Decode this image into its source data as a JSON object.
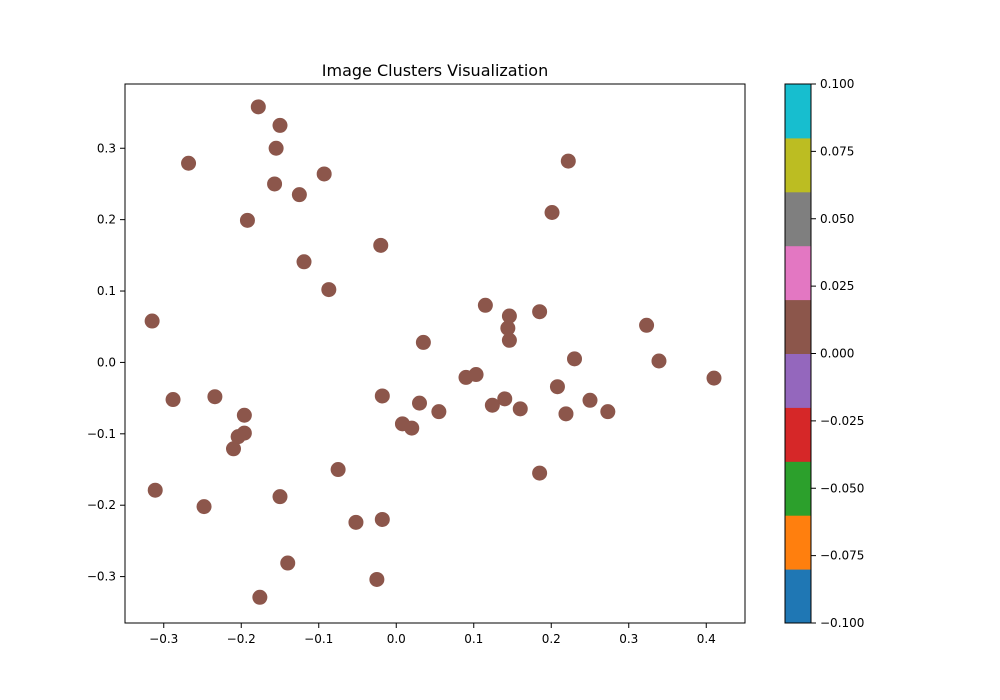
{
  "chart_data": {
    "type": "scatter",
    "title": "Image Clusters Visualization",
    "xlabel": "",
    "ylabel": "",
    "xlim": [
      -0.35,
      0.45
    ],
    "ylim": [
      -0.365,
      0.39
    ],
    "x_ticks": [
      -0.3,
      -0.2,
      -0.1,
      0.0,
      0.1,
      0.2,
      0.3,
      0.4
    ],
    "x_tick_labels": [
      "−0.3",
      "−0.2",
      "−0.1",
      "0.0",
      "0.1",
      "0.2",
      "0.3",
      "0.4"
    ],
    "y_ticks": [
      -0.3,
      -0.2,
      -0.1,
      0.0,
      0.1,
      0.2,
      0.3
    ],
    "y_tick_labels": [
      "−0.3",
      "−0.2",
      "−0.1",
      "0.0",
      "0.1",
      "0.2",
      "0.3"
    ],
    "grid": false,
    "point_color": "#8c564b",
    "points": [
      {
        "x": -0.178,
        "y": 0.358
      },
      {
        "x": -0.15,
        "y": 0.332
      },
      {
        "x": -0.155,
        "y": 0.3
      },
      {
        "x": -0.268,
        "y": 0.279
      },
      {
        "x": -0.093,
        "y": 0.264
      },
      {
        "x": -0.157,
        "y": 0.25
      },
      {
        "x": -0.125,
        "y": 0.235
      },
      {
        "x": -0.192,
        "y": 0.199
      },
      {
        "x": -0.02,
        "y": 0.164
      },
      {
        "x": -0.119,
        "y": 0.141
      },
      {
        "x": -0.087,
        "y": 0.102
      },
      {
        "x": -0.315,
        "y": 0.058
      },
      {
        "x": 0.222,
        "y": 0.282
      },
      {
        "x": 0.201,
        "y": 0.21
      },
      {
        "x": 0.115,
        "y": 0.08
      },
      {
        "x": 0.146,
        "y": 0.065
      },
      {
        "x": 0.185,
        "y": 0.071
      },
      {
        "x": 0.144,
        "y": 0.048
      },
      {
        "x": 0.146,
        "y": 0.031
      },
      {
        "x": 0.035,
        "y": 0.028
      },
      {
        "x": 0.323,
        "y": 0.052
      },
      {
        "x": 0.339,
        "y": 0.002
      },
      {
        "x": 0.23,
        "y": 0.005
      },
      {
        "x": 0.41,
        "y": -0.022
      },
      {
        "x": 0.208,
        "y": -0.034
      },
      {
        "x": 0.09,
        "y": -0.021
      },
      {
        "x": 0.103,
        "y": -0.017
      },
      {
        "x": 0.25,
        "y": -0.053
      },
      {
        "x": 0.273,
        "y": -0.069
      },
      {
        "x": 0.219,
        "y": -0.072
      },
      {
        "x": 0.14,
        "y": -0.051
      },
      {
        "x": 0.124,
        "y": -0.06
      },
      {
        "x": 0.16,
        "y": -0.065
      },
      {
        "x": 0.055,
        "y": -0.069
      },
      {
        "x": 0.03,
        "y": -0.057
      },
      {
        "x": -0.018,
        "y": -0.047
      },
      {
        "x": 0.008,
        "y": -0.086
      },
      {
        "x": 0.02,
        "y": -0.092
      },
      {
        "x": 0.185,
        "y": -0.155
      },
      {
        "x": -0.288,
        "y": -0.052
      },
      {
        "x": -0.234,
        "y": -0.048
      },
      {
        "x": -0.196,
        "y": -0.074
      },
      {
        "x": -0.196,
        "y": -0.099
      },
      {
        "x": -0.204,
        "y": -0.104
      },
      {
        "x": -0.21,
        "y": -0.121
      },
      {
        "x": -0.075,
        "y": -0.15
      },
      {
        "x": -0.311,
        "y": -0.179
      },
      {
        "x": -0.248,
        "y": -0.202
      },
      {
        "x": -0.15,
        "y": -0.188
      },
      {
        "x": -0.052,
        "y": -0.224
      },
      {
        "x": -0.018,
        "y": -0.22
      },
      {
        "x": -0.14,
        "y": -0.281
      },
      {
        "x": -0.025,
        "y": -0.304
      },
      {
        "x": -0.176,
        "y": -0.329
      }
    ],
    "colorbar": {
      "min": -0.1,
      "max": 0.1,
      "colors": [
        "#1f77b4",
        "#ff7f0e",
        "#2ca02c",
        "#d62728",
        "#9467bd",
        "#8c564b",
        "#e377c2",
        "#7f7f7f",
        "#bcbd22",
        "#17becf"
      ],
      "ticks": [
        -0.1,
        -0.075,
        -0.05,
        -0.025,
        0.0,
        0.025,
        0.05,
        0.075,
        0.1
      ],
      "tick_labels": [
        "−0.100",
        "−0.075",
        "−0.050",
        "−0.025",
        "0.000",
        "0.025",
        "0.050",
        "0.075",
        "0.100"
      ]
    }
  }
}
